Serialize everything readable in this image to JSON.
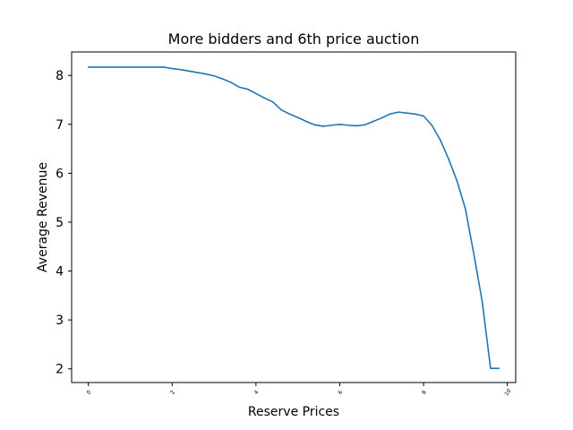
{
  "chart_data": {
    "type": "line",
    "title": "More bidders and 6th price auction",
    "xlabel": "Reserve Prices",
    "ylabel": "Average Revenue",
    "xlim": [
      -0.4,
      10.2
    ],
    "ylim": [
      1.72,
      8.48
    ],
    "xticks": [
      0,
      2,
      4,
      6,
      8,
      10
    ],
    "xtick_labels": [
      "0",
      "2",
      "4",
      "6",
      "8",
      "10"
    ],
    "yticks": [
      2,
      3,
      4,
      5,
      6,
      7,
      8
    ],
    "ytick_labels": [
      "2",
      "3",
      "4",
      "5",
      "6",
      "7",
      "8"
    ],
    "grid": false,
    "series": [
      {
        "color": "#1f77b4",
        "x": [
          0,
          0.2,
          0.4,
          0.6,
          0.8,
          1.0,
          1.2,
          1.4,
          1.6,
          1.8,
          2.0,
          2.2,
          2.4,
          2.6,
          2.8,
          3.0,
          3.2,
          3.4,
          3.6,
          3.8,
          4.0,
          4.2,
          4.4,
          4.6,
          4.8,
          5.0,
          5.2,
          5.4,
          5.6,
          5.8,
          6.0,
          6.2,
          6.4,
          6.6,
          6.8,
          7.0,
          7.2,
          7.4,
          7.6,
          7.8,
          8.0,
          8.2,
          8.4,
          8.6,
          8.8,
          9.0,
          9.2,
          9.4,
          9.6,
          9.8
        ],
        "y": [
          8.17,
          8.17,
          8.17,
          8.17,
          8.17,
          8.17,
          8.17,
          8.17,
          8.17,
          8.17,
          8.14,
          8.12,
          8.09,
          8.06,
          8.03,
          7.99,
          7.93,
          7.86,
          7.76,
          7.72,
          7.63,
          7.54,
          7.46,
          7.3,
          7.21,
          7.14,
          7.06,
          6.99,
          6.96,
          6.98,
          7.0,
          6.98,
          6.97,
          6.99,
          7.06,
          7.13,
          7.21,
          7.25,
          7.23,
          7.21,
          7.17,
          6.98,
          6.68,
          6.29,
          5.84,
          5.27,
          4.35,
          3.38,
          2.01,
          2.01
        ]
      }
    ]
  }
}
